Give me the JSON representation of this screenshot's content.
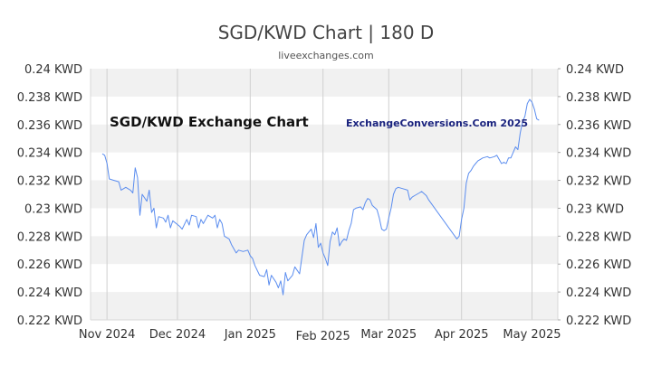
{
  "chart_data": {
    "type": "line",
    "title": "SGD/KWD Chart | 180 D",
    "subtitle": "liveexchanges.com",
    "xlabel": "",
    "ylabel": "",
    "ylim": [
      0.222,
      0.24
    ],
    "y_ticks": [
      "0.222 KWD",
      "0.224 KWD",
      "0.226 KWD",
      "0.228 KWD",
      "0.23 KWD",
      "0.232 KWD",
      "0.234 KWD",
      "0.236 KWD",
      "0.238 KWD",
      "0.24 KWD"
    ],
    "y_tick_values": [
      0.222,
      0.224,
      0.226,
      0.228,
      0.23,
      0.232,
      0.234,
      0.236,
      0.238,
      0.24
    ],
    "x_ticks": [
      {
        "label": "Nov 2024",
        "date": "2024-11-01"
      },
      {
        "label": "Dec 2024",
        "date": "2024-12-01"
      },
      {
        "label": "Jan 2025",
        "date": "2025-01-01"
      },
      {
        "label": "Feb 2025",
        "date": "2025-02-01"
      },
      {
        "label": "Mar 2025",
        "date": "2025-03-01"
      },
      {
        "label": "Apr 2025",
        "date": "2025-04-01"
      },
      {
        "label": "May 2025",
        "date": "2025-05-01"
      }
    ],
    "xlim": [
      "2024-10-25",
      "2025-05-12"
    ],
    "grid": "horizontal bands + vertical month lines",
    "annotations": [
      "SGD/KWD Exchange Chart",
      "ExchangeConversions.Com 2025"
    ],
    "series": [
      {
        "color": "#5b8def",
        "points": [
          [
            "2024-10-30",
            0.2339
          ],
          [
            "2024-10-31",
            0.2338
          ],
          [
            "2024-11-01",
            0.2332
          ],
          [
            "2024-11-02",
            0.2321
          ],
          [
            "2024-11-04",
            0.232
          ],
          [
            "2024-11-06",
            0.2319
          ],
          [
            "2024-11-07",
            0.2313
          ],
          [
            "2024-11-09",
            0.2315
          ],
          [
            "2024-11-11",
            0.2313
          ],
          [
            "2024-11-12",
            0.2311
          ],
          [
            "2024-11-13",
            0.2329
          ],
          [
            "2024-11-14",
            0.2322
          ],
          [
            "2024-11-15",
            0.2295
          ],
          [
            "2024-11-16",
            0.231
          ],
          [
            "2024-11-18",
            0.2305
          ],
          [
            "2024-11-19",
            0.2313
          ],
          [
            "2024-11-20",
            0.2297
          ],
          [
            "2024-11-21",
            0.23
          ],
          [
            "2024-11-22",
            0.2286
          ],
          [
            "2024-11-23",
            0.2294
          ],
          [
            "2024-11-25",
            0.2293
          ],
          [
            "2024-11-26",
            0.229
          ],
          [
            "2024-11-27",
            0.2295
          ],
          [
            "2024-11-28",
            0.2286
          ],
          [
            "2024-11-29",
            0.2291
          ],
          [
            "2024-12-02",
            0.2287
          ],
          [
            "2024-12-03",
            0.2285
          ],
          [
            "2024-12-05",
            0.2292
          ],
          [
            "2024-12-06",
            0.2288
          ],
          [
            "2024-12-07",
            0.2295
          ],
          [
            "2024-12-09",
            0.2294
          ],
          [
            "2024-12-10",
            0.2286
          ],
          [
            "2024-12-11",
            0.2292
          ],
          [
            "2024-12-12",
            0.2289
          ],
          [
            "2024-12-14",
            0.2295
          ],
          [
            "2024-12-16",
            0.2293
          ],
          [
            "2024-12-17",
            0.2295
          ],
          [
            "2024-12-18",
            0.2286
          ],
          [
            "2024-12-19",
            0.2292
          ],
          [
            "2024-12-20",
            0.2289
          ],
          [
            "2024-12-21",
            0.228
          ],
          [
            "2024-12-23",
            0.2278
          ],
          [
            "2024-12-24",
            0.2274
          ],
          [
            "2024-12-26",
            0.2268
          ],
          [
            "2024-12-27",
            0.227
          ],
          [
            "2024-12-29",
            0.2269
          ],
          [
            "2024-12-31",
            0.227
          ],
          [
            "2025-01-01",
            0.2266
          ],
          [
            "2025-01-02",
            0.2264
          ],
          [
            "2025-01-03",
            0.2259
          ],
          [
            "2025-01-05",
            0.2252
          ],
          [
            "2025-01-07",
            0.2251
          ],
          [
            "2025-01-08",
            0.2256
          ],
          [
            "2025-01-09",
            0.2245
          ],
          [
            "2025-01-10",
            0.2252
          ],
          [
            "2025-01-12",
            0.2247
          ],
          [
            "2025-01-13",
            0.2243
          ],
          [
            "2025-01-14",
            0.2248
          ],
          [
            "2025-01-15",
            0.2238
          ],
          [
            "2025-01-16",
            0.2254
          ],
          [
            "2025-01-17",
            0.2248
          ],
          [
            "2025-01-19",
            0.2252
          ],
          [
            "2025-01-20",
            0.2258
          ],
          [
            "2025-01-22",
            0.2253
          ],
          [
            "2025-01-23",
            0.2265
          ],
          [
            "2025-01-24",
            0.2277
          ],
          [
            "2025-01-25",
            0.2281
          ],
          [
            "2025-01-26",
            0.2283
          ],
          [
            "2025-01-27",
            0.2285
          ],
          [
            "2025-01-28",
            0.2279
          ],
          [
            "2025-01-29",
            0.2289
          ],
          [
            "2025-01-30",
            0.2272
          ],
          [
            "2025-01-31",
            0.2275
          ],
          [
            "2025-02-01",
            0.2268
          ],
          [
            "2025-02-02",
            0.2264
          ],
          [
            "2025-02-03",
            0.2259
          ],
          [
            "2025-02-04",
            0.2276
          ],
          [
            "2025-02-05",
            0.2283
          ],
          [
            "2025-02-06",
            0.2281
          ],
          [
            "2025-02-07",
            0.2286
          ],
          [
            "2025-02-08",
            0.2273
          ],
          [
            "2025-02-09",
            0.2276
          ],
          [
            "2025-02-10",
            0.2278
          ],
          [
            "2025-02-11",
            0.2277
          ],
          [
            "2025-02-12",
            0.2284
          ],
          [
            "2025-02-13",
            0.2289
          ],
          [
            "2025-02-14",
            0.2299
          ],
          [
            "2025-02-15",
            0.23
          ],
          [
            "2025-02-17",
            0.2301
          ],
          [
            "2025-02-18",
            0.2299
          ],
          [
            "2025-02-19",
            0.2304
          ],
          [
            "2025-02-20",
            0.2307
          ],
          [
            "2025-02-21",
            0.2306
          ],
          [
            "2025-02-22",
            0.2302
          ],
          [
            "2025-02-24",
            0.2299
          ],
          [
            "2025-02-25",
            0.2293
          ],
          [
            "2025-02-26",
            0.2285
          ],
          [
            "2025-02-27",
            0.2284
          ],
          [
            "2025-02-28",
            0.2285
          ],
          [
            "2025-03-01",
            0.2293
          ],
          [
            "2025-03-02",
            0.23
          ],
          [
            "2025-03-03",
            0.231
          ],
          [
            "2025-03-04",
            0.2314
          ],
          [
            "2025-03-05",
            0.2315
          ],
          [
            "2025-03-07",
            0.2314
          ],
          [
            "2025-03-09",
            0.2313
          ],
          [
            "2025-03-10",
            0.2306
          ],
          [
            "2025-03-11",
            0.2308
          ],
          [
            "2025-03-12",
            0.2309
          ],
          [
            "2025-03-14",
            0.2311
          ],
          [
            "2025-03-15",
            0.2312
          ],
          [
            "2025-03-17",
            0.2309
          ],
          [
            "2025-03-18",
            0.2306
          ],
          [
            "2025-03-30",
            0.2278
          ],
          [
            "2025-03-31",
            0.228
          ],
          [
            "2025-04-01",
            0.2292
          ],
          [
            "2025-04-02",
            0.23
          ],
          [
            "2025-04-03",
            0.2318
          ],
          [
            "2025-04-04",
            0.2325
          ],
          [
            "2025-04-05",
            0.2327
          ],
          [
            "2025-04-06",
            0.233
          ],
          [
            "2025-04-07",
            0.2332
          ],
          [
            "2025-04-08",
            0.2334
          ],
          [
            "2025-04-09",
            0.2335
          ],
          [
            "2025-04-10",
            0.2336
          ],
          [
            "2025-04-12",
            0.2337
          ],
          [
            "2025-04-13",
            0.2336
          ],
          [
            "2025-04-15",
            0.2337
          ],
          [
            "2025-04-16",
            0.2338
          ],
          [
            "2025-04-17",
            0.2335
          ],
          [
            "2025-04-18",
            0.2332
          ],
          [
            "2025-04-19",
            0.2333
          ],
          [
            "2025-04-20",
            0.2332
          ],
          [
            "2025-04-21",
            0.2336
          ],
          [
            "2025-04-22",
            0.2336
          ],
          [
            "2025-04-23",
            0.234
          ],
          [
            "2025-04-24",
            0.2344
          ],
          [
            "2025-04-25",
            0.2342
          ],
          [
            "2025-04-26",
            0.2354
          ],
          [
            "2025-04-27",
            0.2362
          ],
          [
            "2025-04-28",
            0.2366
          ],
          [
            "2025-04-29",
            0.2375
          ],
          [
            "2025-04-30",
            0.2378
          ],
          [
            "2025-05-01",
            0.2376
          ],
          [
            "2025-05-02",
            0.2371
          ],
          [
            "2025-05-03",
            0.2364
          ],
          [
            "2025-05-04",
            0.2363
          ]
        ]
      }
    ]
  }
}
